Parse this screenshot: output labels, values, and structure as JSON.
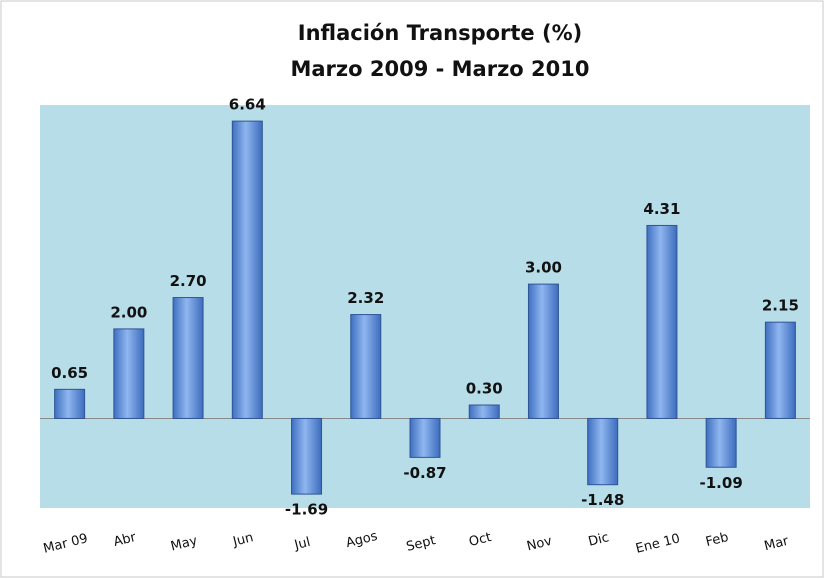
{
  "chart_data": {
    "type": "bar",
    "title": "Inflación Transporte  (%)",
    "subtitle": "Marzo 2009 - Marzo 2010",
    "categories": [
      "Mar 09",
      "Abr",
      "May",
      "Jun",
      "Jul",
      "Agos",
      "Sept",
      "Oct",
      "Nov",
      "Dic",
      "Ene 10",
      "Feb",
      "Mar"
    ],
    "values": [
      0.65,
      2.0,
      2.7,
      6.64,
      -1.69,
      2.32,
      -0.87,
      0.3,
      3.0,
      -1.48,
      4.31,
      -1.09,
      2.15
    ],
    "value_labels": [
      "0.65",
      "2.00",
      "2.70",
      "6.64",
      "-1.69",
      "2.32",
      "-0.87",
      "0.30",
      "3.00",
      "-1.48",
      "4.31",
      "-1.09",
      "2.15"
    ],
    "color": "#5b8fd6",
    "ylim": [
      -2,
      7
    ]
  }
}
